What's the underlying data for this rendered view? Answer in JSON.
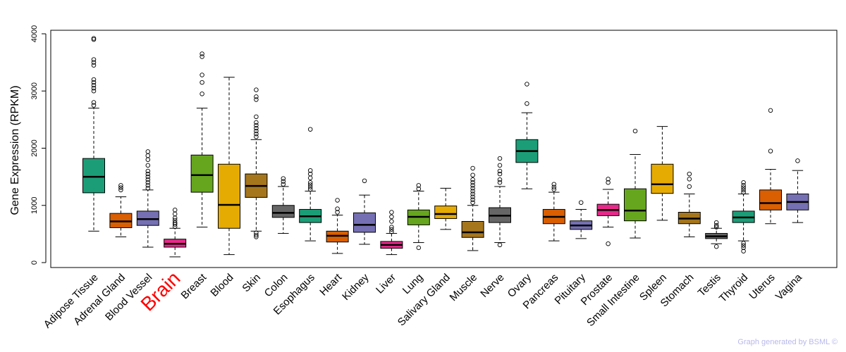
{
  "chart_data": {
    "type": "boxplot",
    "title": "",
    "xlabel": "",
    "ylabel": "Gene Expression (RPKM)",
    "ylim": [
      0,
      4000
    ],
    "yticks": [
      0,
      1000,
      2000,
      3000,
      4000
    ],
    "highlight": "Brain",
    "highlight_color": "#ff0000",
    "categories": [
      "Adipose Tissue",
      "Adrenal Gland",
      "Blood Vessel",
      "Brain",
      "Breast",
      "Blood",
      "Skin",
      "Colon",
      "Esophagus",
      "Heart",
      "Kidney",
      "Liver",
      "Lung",
      "Salivary Gland",
      "Muscle",
      "Nerve",
      "Ovary",
      "Pancreas",
      "Pituitary",
      "Prostate",
      "Small Intestine",
      "Spleen",
      "Stomach",
      "Testis",
      "Thyroid",
      "Uterus",
      "Vagina"
    ],
    "series": [
      {
        "name": "Adipose Tissue",
        "color": "#1b9e77",
        "whisker_low": 550,
        "q1": 1220,
        "median": 1500,
        "q3": 1820,
        "whisker_high": 2700,
        "outliers": [
          2750,
          2800,
          3000,
          3050,
          3100,
          3150,
          3200,
          3450,
          3500,
          3550,
          3900,
          3920
        ]
      },
      {
        "name": "Adrenal Gland",
        "color": "#d95f02",
        "whisker_low": 450,
        "q1": 610,
        "median": 720,
        "q3": 860,
        "whisker_high": 1150,
        "outliers": [
          1270,
          1310,
          1350
        ]
      },
      {
        "name": "Blood Vessel",
        "color": "#7570b3",
        "whisker_low": 270,
        "q1": 650,
        "median": 760,
        "q3": 900,
        "whisker_high": 1270,
        "outliers": [
          1300,
          1350,
          1400,
          1450,
          1500,
          1550,
          1600,
          1700,
          1800,
          1870,
          1940
        ]
      },
      {
        "name": "Brain",
        "color": "#e7298a",
        "whisker_low": 100,
        "q1": 270,
        "median": 330,
        "q3": 410,
        "whisker_high": 600,
        "outliers": [
          630,
          670,
          700,
          740,
          780,
          850,
          920
        ]
      },
      {
        "name": "Breast",
        "color": "#66a61e",
        "whisker_low": 620,
        "q1": 1230,
        "median": 1530,
        "q3": 1880,
        "whisker_high": 2700,
        "outliers": [
          2950,
          3150,
          3280,
          3600,
          3650
        ]
      },
      {
        "name": "Blood",
        "color": "#e6ab02",
        "whisker_low": 140,
        "q1": 600,
        "median": 1010,
        "q3": 1720,
        "whisker_high": 3240,
        "outliers": []
      },
      {
        "name": "Skin",
        "color": "#a6761d",
        "whisker_low": 550,
        "q1": 1140,
        "median": 1340,
        "q3": 1550,
        "whisker_high": 2150,
        "outliers": [
          450,
          480,
          520,
          2200,
          2250,
          2300,
          2350,
          2400,
          2450,
          2550,
          2850,
          2900,
          3020
        ]
      },
      {
        "name": "Colon",
        "color": "#666666",
        "whisker_low": 510,
        "q1": 790,
        "median": 870,
        "q3": 1000,
        "whisker_high": 1330,
        "outliers": [
          1370,
          1420,
          1470
        ]
      },
      {
        "name": "Esophagus",
        "color": "#1b9e77",
        "whisker_low": 380,
        "q1": 700,
        "median": 810,
        "q3": 930,
        "whisker_high": 1250,
        "outliers": [
          1280,
          1320,
          1360,
          1400,
          1480,
          1550,
          1610,
          2330
        ]
      },
      {
        "name": "Heart",
        "color": "#d95f02",
        "whisker_low": 160,
        "q1": 360,
        "median": 470,
        "q3": 550,
        "whisker_high": 830,
        "outliers": [
          880,
          940,
          1090
        ]
      },
      {
        "name": "Kidney",
        "color": "#7570b3",
        "whisker_low": 320,
        "q1": 530,
        "median": 660,
        "q3": 870,
        "whisker_high": 1180,
        "outliers": [
          1430
        ]
      },
      {
        "name": "Liver",
        "color": "#e7298a",
        "whisker_low": 140,
        "q1": 250,
        "median": 310,
        "q3": 370,
        "whisker_high": 510,
        "outliers": [
          540,
          580,
          620,
          720,
          800,
          880
        ]
      },
      {
        "name": "Lung",
        "color": "#66a61e",
        "whisker_low": 350,
        "q1": 660,
        "median": 800,
        "q3": 920,
        "whisker_high": 1250,
        "outliers": [
          260,
          1290,
          1350
        ]
      },
      {
        "name": "Salivary Gland",
        "color": "#e6ab02",
        "whisker_low": 580,
        "q1": 770,
        "median": 850,
        "q3": 990,
        "whisker_high": 1300,
        "outliers": []
      },
      {
        "name": "Muscle",
        "color": "#a6761d",
        "whisker_low": 210,
        "q1": 440,
        "median": 530,
        "q3": 720,
        "whisker_high": 1000,
        "outliers": [
          1050,
          1100,
          1150,
          1200,
          1250,
          1300,
          1350,
          1400,
          1450,
          1530,
          1650
        ]
      },
      {
        "name": "Nerve",
        "color": "#666666",
        "whisker_low": 350,
        "q1": 700,
        "median": 820,
        "q3": 960,
        "whisker_high": 1330,
        "outliers": [
          310,
          1400,
          1450,
          1550,
          1600,
          1700,
          1820
        ]
      },
      {
        "name": "Ovary",
        "color": "#1b9e77",
        "whisker_low": 1290,
        "q1": 1750,
        "median": 1950,
        "q3": 2150,
        "whisker_high": 2620,
        "outliers": [
          2780,
          3120
        ]
      },
      {
        "name": "Pancreas",
        "color": "#d95f02",
        "whisker_low": 380,
        "q1": 680,
        "median": 800,
        "q3": 930,
        "whisker_high": 1230,
        "outliers": [
          1280,
          1320,
          1370
        ]
      },
      {
        "name": "Pituitary",
        "color": "#7570b3",
        "whisker_low": 420,
        "q1": 580,
        "median": 650,
        "q3": 730,
        "whisker_high": 930,
        "outliers": [
          1050
        ]
      },
      {
        "name": "Prostate",
        "color": "#e7298a",
        "whisker_low": 620,
        "q1": 820,
        "median": 920,
        "q3": 1020,
        "whisker_high": 1280,
        "outliers": [
          330,
          1400,
          1460
        ]
      },
      {
        "name": "Small Intestine",
        "color": "#66a61e",
        "whisker_low": 430,
        "q1": 730,
        "median": 910,
        "q3": 1290,
        "whisker_high": 1890,
        "outliers": [
          2300
        ]
      },
      {
        "name": "Spleen",
        "color": "#e6ab02",
        "whisker_low": 740,
        "q1": 1210,
        "median": 1370,
        "q3": 1720,
        "whisker_high": 2380,
        "outliers": []
      },
      {
        "name": "Stomach",
        "color": "#a6761d",
        "whisker_low": 450,
        "q1": 680,
        "median": 770,
        "q3": 880,
        "whisker_high": 1200,
        "outliers": [
          1330,
          1460,
          1550
        ]
      },
      {
        "name": "Testis",
        "color": "#666666",
        "whisker_low": 330,
        "q1": 420,
        "median": 460,
        "q3": 510,
        "whisker_high": 600,
        "outliers": [
          280,
          620,
          650,
          700
        ]
      },
      {
        "name": "Thyroid",
        "color": "#1b9e77",
        "whisker_low": 380,
        "q1": 700,
        "median": 790,
        "q3": 900,
        "whisker_high": 1200,
        "outliers": [
          200,
          260,
          300,
          340,
          1230,
          1270,
          1310,
          1350,
          1400
        ]
      },
      {
        "name": "Uterus",
        "color": "#d95f02",
        "whisker_low": 680,
        "q1": 920,
        "median": 1040,
        "q3": 1270,
        "whisker_high": 1630,
        "outliers": [
          1950,
          2660
        ]
      },
      {
        "name": "Vagina",
        "color": "#7570b3",
        "whisker_low": 700,
        "q1": 920,
        "median": 1060,
        "q3": 1200,
        "whisker_high": 1610,
        "outliers": [
          1780
        ]
      }
    ]
  },
  "footer": {
    "credit": "Graph generated by BSML ©"
  }
}
